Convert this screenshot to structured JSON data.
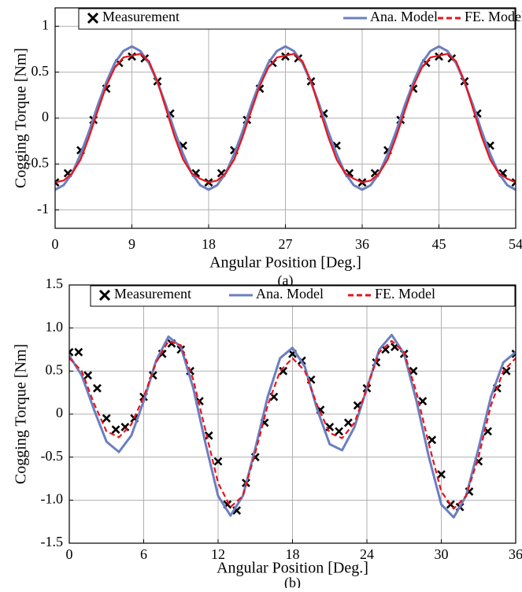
{
  "chart_data": [
    {
      "type": "line",
      "caption": "(a)",
      "xlabel": "Angular Position [Deg.]",
      "ylabel": "Cogging Torque [Nm]",
      "xlim": [
        0,
        54
      ],
      "ylim": [
        -1.2,
        1.2
      ],
      "xticks": [
        0,
        9,
        18,
        27,
        36,
        45,
        54
      ],
      "yticks": [
        -1,
        -0.5,
        0,
        0.5,
        1
      ],
      "grid": true,
      "legend": "top right",
      "x": [
        0,
        1,
        2,
        3,
        4,
        5,
        6,
        7,
        8,
        9,
        10,
        11,
        12,
        13,
        14,
        15,
        16,
        17,
        18,
        19,
        20,
        21,
        22,
        23,
        24,
        25,
        26,
        27,
        28,
        29,
        30,
        31,
        32,
        33,
        34,
        35,
        36,
        37,
        38,
        39,
        40,
        41,
        42,
        43,
        44,
        45,
        46,
        47,
        48,
        49,
        50,
        51,
        52,
        53,
        54
      ],
      "series": [
        {
          "name": "Measurement",
          "color": "#000000",
          "style": "marker",
          "x": [
            0,
            1.5,
            3,
            4.5,
            6,
            7.5,
            9,
            10.5,
            12,
            13.5,
            15,
            16.5,
            18,
            19.5,
            21,
            22.5,
            24,
            25.5,
            27,
            28.5,
            30,
            31.5,
            33,
            34.5,
            36,
            37.5,
            39,
            40.5,
            42,
            43.5,
            45,
            46.5,
            48,
            49.5,
            51,
            52.5,
            54
          ],
          "values": [
            -0.7,
            -0.6,
            -0.35,
            -0.02,
            0.32,
            0.6,
            0.67,
            0.65,
            0.4,
            0.05,
            -0.3,
            -0.6,
            -0.7,
            -0.6,
            -0.35,
            -0.02,
            0.32,
            0.6,
            0.67,
            0.65,
            0.4,
            0.05,
            -0.3,
            -0.6,
            -0.7,
            -0.6,
            -0.35,
            -0.02,
            0.32,
            0.6,
            0.67,
            0.65,
            0.4,
            0.05,
            -0.3,
            -0.6,
            -0.7
          ]
        },
        {
          "name": "Ana. Model",
          "color": "#6b7fc0",
          "style": "solid",
          "values": [
            -0.78,
            -0.73,
            -0.6,
            -0.39,
            -0.14,
            0.14,
            0.39,
            0.6,
            0.73,
            0.78,
            0.73,
            0.6,
            0.39,
            0.14,
            -0.14,
            -0.39,
            -0.6,
            -0.73,
            -0.78,
            -0.73,
            -0.6,
            -0.39,
            -0.14,
            0.14,
            0.39,
            0.6,
            0.73,
            0.78,
            0.73,
            0.6,
            0.39,
            0.14,
            -0.14,
            -0.39,
            -0.6,
            -0.73,
            -0.78,
            -0.73,
            -0.6,
            -0.39,
            -0.14,
            0.14,
            0.39,
            0.6,
            0.73,
            0.78,
            0.73,
            0.6,
            0.39,
            0.14,
            -0.14,
            -0.39,
            -0.6,
            -0.73,
            -0.78
          ]
        },
        {
          "name": "FE. Model",
          "color": "#e8141c",
          "style": "solid",
          "values": [
            -0.7,
            -0.68,
            -0.6,
            -0.45,
            -0.2,
            0.08,
            0.35,
            0.55,
            0.66,
            0.68,
            0.7,
            0.62,
            0.4,
            0.1,
            -0.2,
            -0.45,
            -0.6,
            -0.66,
            -0.7,
            -0.68,
            -0.6,
            -0.45,
            -0.2,
            0.08,
            0.35,
            0.55,
            0.66,
            0.68,
            0.7,
            0.62,
            0.4,
            0.1,
            -0.2,
            -0.45,
            -0.6,
            -0.66,
            -0.7,
            -0.68,
            -0.6,
            -0.45,
            -0.2,
            0.08,
            0.35,
            0.55,
            0.66,
            0.68,
            0.7,
            0.62,
            0.4,
            0.1,
            -0.2,
            -0.45,
            -0.6,
            -0.66,
            -0.7
          ]
        }
      ]
    },
    {
      "type": "line",
      "caption": "(b)",
      "xlabel": "Angular Position [Deg.]",
      "ylabel": "Cogging Torque [Nm]",
      "xlim": [
        0,
        36
      ],
      "ylim": [
        -1.5,
        1.5
      ],
      "xticks": [
        0,
        6,
        12,
        18,
        24,
        30,
        36
      ],
      "yticks": [
        -1.5,
        {
          "value": -1,
          "label": "-1.0"
        },
        -0.5,
        0,
        0.5,
        {
          "value": 1,
          "label": "1.0"
        },
        1.5
      ],
      "grid": true,
      "legend": "top right",
      "x": [
        0,
        1,
        2,
        3,
        4,
        5,
        6,
        7,
        8,
        9,
        10,
        11,
        12,
        13,
        14,
        15,
        16,
        17,
        18,
        19,
        20,
        21,
        22,
        23,
        24,
        25,
        26,
        27,
        28,
        29,
        30,
        31,
        32,
        33,
        34,
        35,
        36
      ],
      "series": [
        {
          "name": "Measurement",
          "color": "#000000",
          "style": "marker",
          "x": [
            0,
            0.75,
            1.5,
            2.25,
            3,
            3.75,
            4.5,
            5.25,
            6,
            6.75,
            7.5,
            8.25,
            9,
            9.75,
            10.5,
            11.25,
            12,
            12.75,
            13.5,
            14.25,
            15,
            15.75,
            16.5,
            17.25,
            18,
            18.75,
            19.5,
            20.25,
            21,
            21.75,
            22.5,
            23.25,
            24,
            24.75,
            25.5,
            26.25,
            27,
            27.75,
            28.5,
            29.25,
            30,
            30.75,
            31.5,
            32.25,
            33,
            33.75,
            34.5,
            35.25,
            36
          ],
          "values": [
            0.72,
            0.72,
            0.45,
            0.3,
            -0.05,
            -0.18,
            -0.15,
            -0.05,
            0.2,
            0.45,
            0.7,
            0.82,
            0.75,
            0.5,
            0.15,
            -0.25,
            -0.55,
            -1.05,
            -1.12,
            -0.8,
            -0.5,
            -0.1,
            0.2,
            0.5,
            0.7,
            0.62,
            0.4,
            0.05,
            -0.15,
            -0.2,
            -0.1,
            0.1,
            0.3,
            0.6,
            0.75,
            0.78,
            0.7,
            0.5,
            0.15,
            -0.3,
            -0.7,
            -1.05,
            -1.08,
            -0.9,
            -0.55,
            -0.2,
            0.3,
            0.5,
            0.7
          ]
        },
        {
          "name": "Ana. Model",
          "color": "#6b7fc0",
          "style": "solid",
          "values": [
            0.68,
            0.45,
            0.05,
            -0.32,
            -0.44,
            -0.25,
            0.15,
            0.62,
            0.9,
            0.78,
            0.3,
            -0.35,
            -0.95,
            -1.18,
            -0.95,
            -0.4,
            0.2,
            0.65,
            0.77,
            0.55,
            0.05,
            -0.35,
            -0.42,
            -0.15,
            0.3,
            0.75,
            0.92,
            0.7,
            0.15,
            -0.5,
            -1.05,
            -1.2,
            -0.95,
            -0.4,
            0.2,
            0.6,
            0.72
          ]
        },
        {
          "name": "FE. Model",
          "color": "#e8141c",
          "style": "dashed",
          "values": [
            0.65,
            0.5,
            0.12,
            -0.2,
            -0.27,
            -0.12,
            0.2,
            0.6,
            0.85,
            0.8,
            0.4,
            -0.2,
            -0.8,
            -1.08,
            -0.95,
            -0.45,
            0.1,
            0.5,
            0.65,
            0.5,
            0.1,
            -0.22,
            -0.28,
            -0.1,
            0.3,
            0.72,
            0.85,
            0.72,
            0.25,
            -0.35,
            -0.9,
            -1.1,
            -0.95,
            -0.5,
            0.1,
            0.5,
            0.65
          ]
        }
      ]
    }
  ]
}
